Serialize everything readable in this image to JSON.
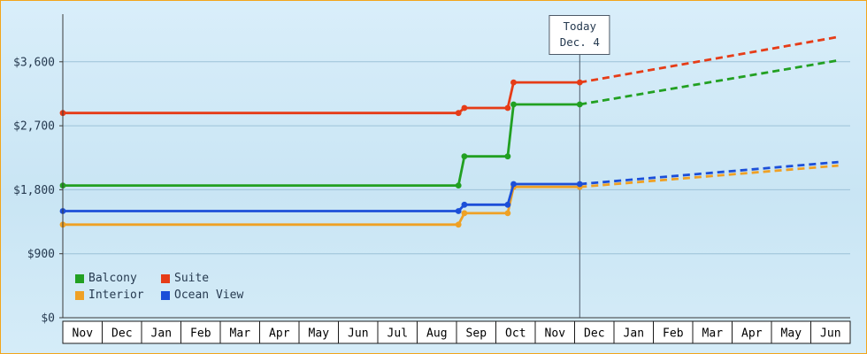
{
  "frame": {
    "border_color": "#f2a51b"
  },
  "today": {
    "line1": "Today",
    "line2": "Dec. 4"
  },
  "chart_data": {
    "type": "line",
    "title": "",
    "xlabel": "",
    "ylabel": "",
    "grid": true,
    "legend_position": "bottom-left",
    "x_months": [
      "Nov",
      "Dec",
      "Jan",
      "Feb",
      "Mar",
      "Apr",
      "May",
      "Jun",
      "Jul",
      "Aug",
      "Sep",
      "Oct",
      "Nov",
      "Dec",
      "Jan",
      "Feb",
      "Mar",
      "Apr",
      "May",
      "Jun"
    ],
    "y_ticks": [
      {
        "value": 0,
        "label": "$0"
      },
      {
        "value": 900,
        "label": "$900"
      },
      {
        "value": 1800,
        "label": "$1,800"
      },
      {
        "value": 2700,
        "label": "$2,700"
      },
      {
        "value": 3600,
        "label": "$3,600"
      }
    ],
    "ylim": [
      0,
      4270
    ],
    "today_month": 13.13,
    "forecast_end_month": 19.7,
    "series": [
      {
        "name": "Balcony",
        "color": "#22a022",
        "solid": [
          [
            0,
            1860
          ],
          [
            10.05,
            1860
          ],
          [
            10.2,
            2270
          ],
          [
            11.3,
            2270
          ],
          [
            11.45,
            3000
          ],
          [
            13.13,
            3000
          ]
        ],
        "forecast_end_value": 3620
      },
      {
        "name": "Suite",
        "color": "#e63c17",
        "solid": [
          [
            0,
            2880
          ],
          [
            10.05,
            2880
          ],
          [
            10.2,
            2950
          ],
          [
            11.3,
            2950
          ],
          [
            11.45,
            3310
          ],
          [
            13.13,
            3310
          ]
        ],
        "forecast_end_value": 3950
      },
      {
        "name": "Interior",
        "color": "#efa125",
        "solid": [
          [
            0,
            1310
          ],
          [
            10.05,
            1310
          ],
          [
            10.2,
            1470
          ],
          [
            11.3,
            1470
          ],
          [
            11.45,
            1840
          ],
          [
            13.13,
            1840
          ]
        ],
        "forecast_end_value": 2140
      },
      {
        "name": "Ocean View",
        "color": "#1c4fd8",
        "solid": [
          [
            0,
            1500
          ],
          [
            10.05,
            1500
          ],
          [
            10.2,
            1590
          ],
          [
            11.3,
            1590
          ],
          [
            11.45,
            1880
          ],
          [
            13.13,
            1880
          ]
        ],
        "forecast_end_value": 2190
      }
    ]
  }
}
